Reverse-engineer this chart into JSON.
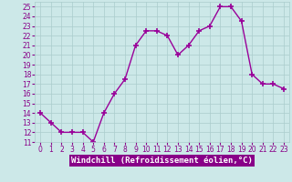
{
  "x": [
    0,
    1,
    2,
    3,
    4,
    5,
    6,
    7,
    8,
    9,
    10,
    11,
    12,
    13,
    14,
    15,
    16,
    17,
    18,
    19,
    20,
    21,
    22,
    23
  ],
  "y": [
    14,
    13,
    12,
    12,
    12,
    11,
    14,
    16,
    17.5,
    21,
    22.5,
    22.5,
    22,
    20,
    21,
    22.5,
    23,
    25,
    25,
    23.5,
    18,
    17,
    17,
    16.5
  ],
  "line_color": "#990099",
  "marker": "+",
  "marker_size": 4,
  "marker_lw": 1.2,
  "line_width": 1.0,
  "bg_color": "#cce8e8",
  "grid_color": "#aacccc",
  "xlabel": "Windchill (Refroidissement éolien,°C)",
  "ylim": [
    11,
    25.5
  ],
  "xlim": [
    -0.5,
    23.5
  ],
  "yticks": [
    11,
    12,
    13,
    14,
    15,
    16,
    17,
    18,
    19,
    20,
    21,
    22,
    23,
    24,
    25
  ],
  "xticks": [
    0,
    1,
    2,
    3,
    4,
    5,
    6,
    7,
    8,
    9,
    10,
    11,
    12,
    13,
    14,
    15,
    16,
    17,
    18,
    19,
    20,
    21,
    22,
    23
  ],
  "xlabel_bg": "#880088",
  "xlabel_color": "#ffffff",
  "xlabel_fontsize": 6.5,
  "tick_fontsize": 5.5,
  "tick_color": "#880088"
}
